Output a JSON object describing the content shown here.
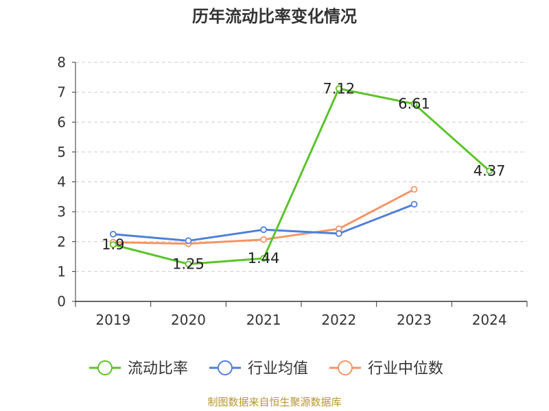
{
  "chart_data": {
    "type": "line",
    "title": "历年流动比率变化情况",
    "categories": [
      "2019",
      "2020",
      "2021",
      "2022",
      "2023",
      "2024"
    ],
    "ylim": [
      0,
      8
    ],
    "yticks": [
      "0",
      "1",
      "2",
      "3",
      "4",
      "5",
      "6",
      "7",
      "8"
    ],
    "grid": true,
    "legend_position": "bottom",
    "series": [
      {
        "name": "流动比率",
        "color": "#5cc22b",
        "values": [
          1.9,
          1.25,
          1.44,
          7.12,
          6.61,
          4.37
        ],
        "labels": [
          "1.9",
          "1.25",
          "1.44",
          "7.12",
          "6.61",
          "4.37"
        ]
      },
      {
        "name": "行业均值",
        "color": "#4e7fd9",
        "values": [
          2.25,
          2.03,
          2.4,
          2.27,
          3.25,
          null
        ]
      },
      {
        "name": "行业中位数",
        "color": "#f59565",
        "values": [
          1.98,
          1.93,
          2.07,
          2.43,
          3.75,
          null
        ]
      }
    ]
  },
  "source_note": "制图数据来自恒生聚源数据库"
}
